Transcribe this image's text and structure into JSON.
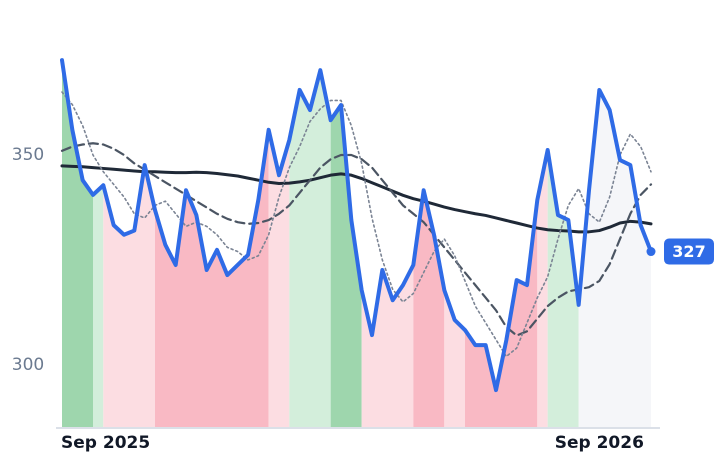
{
  "chart_data": {
    "type": "line",
    "categories": [
      "Sep 2025",
      null,
      null,
      null,
      null,
      null,
      null,
      null,
      null,
      null,
      null,
      null,
      null,
      null,
      null,
      null,
      null,
      null,
      null,
      null,
      null,
      null,
      null,
      null,
      null,
      null,
      null,
      null,
      null,
      null,
      null,
      null,
      null,
      null,
      null,
      null,
      null,
      null,
      null,
      null,
      null,
      null,
      null,
      null,
      null,
      null,
      null,
      null,
      null,
      null,
      null,
      null,
      "Sep 2026",
      null,
      null,
      null,
      null,
      null
    ],
    "series": [
      {
        "color": "#2f6be6",
        "style": "solid",
        "width": 4,
        "values": [
          372.6,
          356,
          344,
          340.5,
          342.8,
          333.3,
          331,
          332,
          347.6,
          336.9,
          328.6,
          323.8,
          341.6,
          335.7,
          322.6,
          327.4,
          321.4,
          323.8,
          326.2,
          339.3,
          356,
          345.2,
          353.6,
          365.5,
          360.7,
          370.2,
          358.3,
          361.9,
          334.5,
          317.8,
          307.1,
          322.6,
          315.4,
          319,
          323.8,
          341.6,
          331,
          317.8,
          310.7,
          308.3,
          304.7,
          304.7,
          294,
          305.9,
          320.2,
          319,
          339.3,
          351.2,
          335.7,
          334.5,
          314.3,
          341.6,
          365.5,
          360.7,
          348.8,
          347.6,
          333.3,
          327
        ]
      },
      {
        "color": "#7b8494",
        "style": "dotted",
        "width": 1.6,
        "values": [
          365,
          362,
          357,
          350,
          346,
          343,
          340,
          336,
          335,
          338,
          339,
          336,
          333,
          334,
          333,
          331,
          328,
          327,
          325,
          326,
          331,
          340,
          347,
          352,
          358,
          361,
          363,
          363,
          357,
          348,
          335,
          325,
          318,
          315,
          317,
          322,
          327,
          330,
          326,
          320,
          314,
          310,
          306,
          302,
          304,
          310,
          316,
          321,
          330,
          338,
          342,
          336,
          334,
          340,
          350,
          355,
          352,
          346
        ]
      },
      {
        "color": "#4b5563",
        "style": "dashed",
        "width": 2.2,
        "values": [
          351,
          352,
          352.5,
          352.8,
          352.5,
          351.5,
          350,
          348,
          346.5,
          345,
          343.5,
          342,
          340.5,
          339,
          337.5,
          336,
          334.8,
          334,
          333.6,
          333.8,
          334.5,
          336,
          338,
          341,
          344,
          347,
          349,
          350,
          350,
          349,
          347,
          344,
          341,
          338,
          336,
          334,
          331,
          328,
          325,
          322,
          319,
          316,
          313,
          309,
          307,
          308,
          311,
          314,
          316,
          317.5,
          318,
          318.5,
          320,
          324,
          330,
          336,
          340.5,
          343
        ]
      },
      {
        "color": "#1f2937",
        "style": "solid",
        "width": 3,
        "values": [
          347.4,
          347.3,
          347.2,
          347,
          346.8,
          346.6,
          346.4,
          346.2,
          346,
          346,
          345.9,
          345.8,
          345.8,
          345.9,
          345.8,
          345.6,
          345.3,
          345,
          344.5,
          344,
          343.5,
          343.2,
          343.3,
          343.6,
          344,
          344.6,
          345.2,
          345.5,
          345.2,
          344.4,
          343.4,
          342.4,
          341.4,
          340.4,
          339.6,
          339,
          338.3,
          337.6,
          337,
          336.5,
          336,
          335.6,
          335,
          334.4,
          333.8,
          333.2,
          332.6,
          332.2,
          332,
          331.9,
          331.7,
          331.7,
          332,
          332.8,
          333.8,
          334.2,
          334,
          333.6
        ]
      }
    ],
    "bands": [
      {
        "start": 0,
        "end": 3,
        "color": "#9ed6ad"
      },
      {
        "start": 3,
        "end": 4,
        "color": "#d3eedb"
      },
      {
        "start": 4,
        "end": 9,
        "color": "#fcdde2"
      },
      {
        "start": 9,
        "end": 20,
        "color": "#f9b9c4"
      },
      {
        "start": 20,
        "end": 22,
        "color": "#fcdde2"
      },
      {
        "start": 22,
        "end": 26,
        "color": "#d3eedb"
      },
      {
        "start": 26,
        "end": 29,
        "color": "#9ed6ad"
      },
      {
        "start": 29,
        "end": 34,
        "color": "#fcdde2"
      },
      {
        "start": 34,
        "end": 37,
        "color": "#f9b9c4"
      },
      {
        "start": 37,
        "end": 39,
        "color": "#fcdde2"
      },
      {
        "start": 39,
        "end": 46,
        "color": "#f9b9c4"
      },
      {
        "start": 46,
        "end": 47,
        "color": "#fcdde2"
      },
      {
        "start": 47,
        "end": 50,
        "color": "#d3eedb"
      },
      {
        "start": 50,
        "end": 57,
        "color": "#f5f6f9"
      }
    ],
    "ylim": [
      285.2,
      377.4
    ],
    "yticks": [
      300,
      350
    ],
    "grid": false
  }
}
